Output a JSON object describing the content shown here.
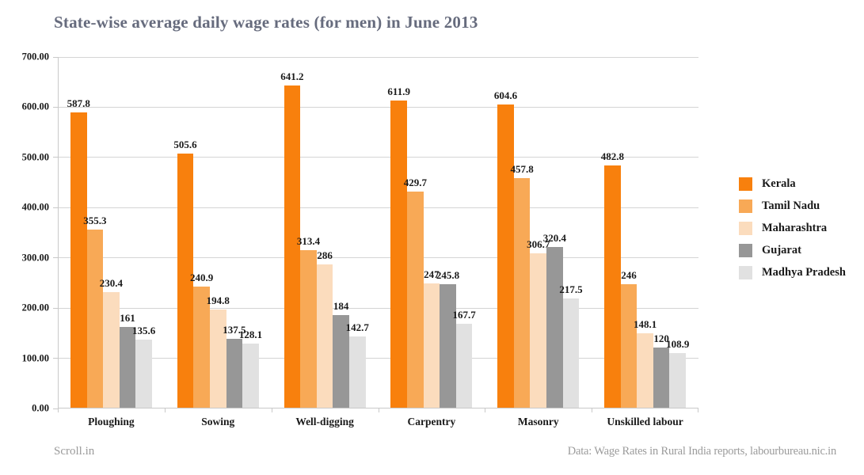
{
  "page": {
    "title": "State-wise average daily wage rates (for men) in June 2013",
    "footer_left": "Scroll.in",
    "footer_right": "Data: Wage Rates in Rural India reports, labourbureau.nic.in"
  },
  "chart_data": {
    "type": "bar",
    "title": "State-wise average daily wage rates (for men) in June 2013",
    "categories": [
      "Ploughing",
      "Sowing",
      "Well-digging",
      "Carpentry",
      "Masonry",
      "Unskilled labour"
    ],
    "series": [
      {
        "name": "Kerala",
        "color": "#f8800d",
        "values": [
          587.8,
          505.6,
          641.2,
          611.9,
          604.6,
          482.8
        ]
      },
      {
        "name": "Tamil Nadu",
        "color": "#f8a956",
        "values": [
          355.3,
          240.9,
          313.4,
          429.7,
          457.8,
          246
        ]
      },
      {
        "name": "Maharashtra",
        "color": "#fbdcbd",
        "values": [
          230.4,
          194.8,
          286,
          247,
          306.7,
          148.1
        ]
      },
      {
        "name": "Gujarat",
        "color": "#979797",
        "values": [
          161,
          137.5,
          184,
          245.8,
          320.4,
          120
        ]
      },
      {
        "name": "Madhya Pradesh",
        "color": "#e1e1e1",
        "values": [
          135.6,
          128.1,
          142.7,
          167.7,
          217.5,
          108.9
        ]
      }
    ],
    "xlabel": "",
    "ylabel": "",
    "ylim": [
      0,
      700
    ],
    "ytick_step": 100,
    "ytick_decimals": 2,
    "grid": true,
    "legend_position": "right",
    "value_labels": true
  }
}
